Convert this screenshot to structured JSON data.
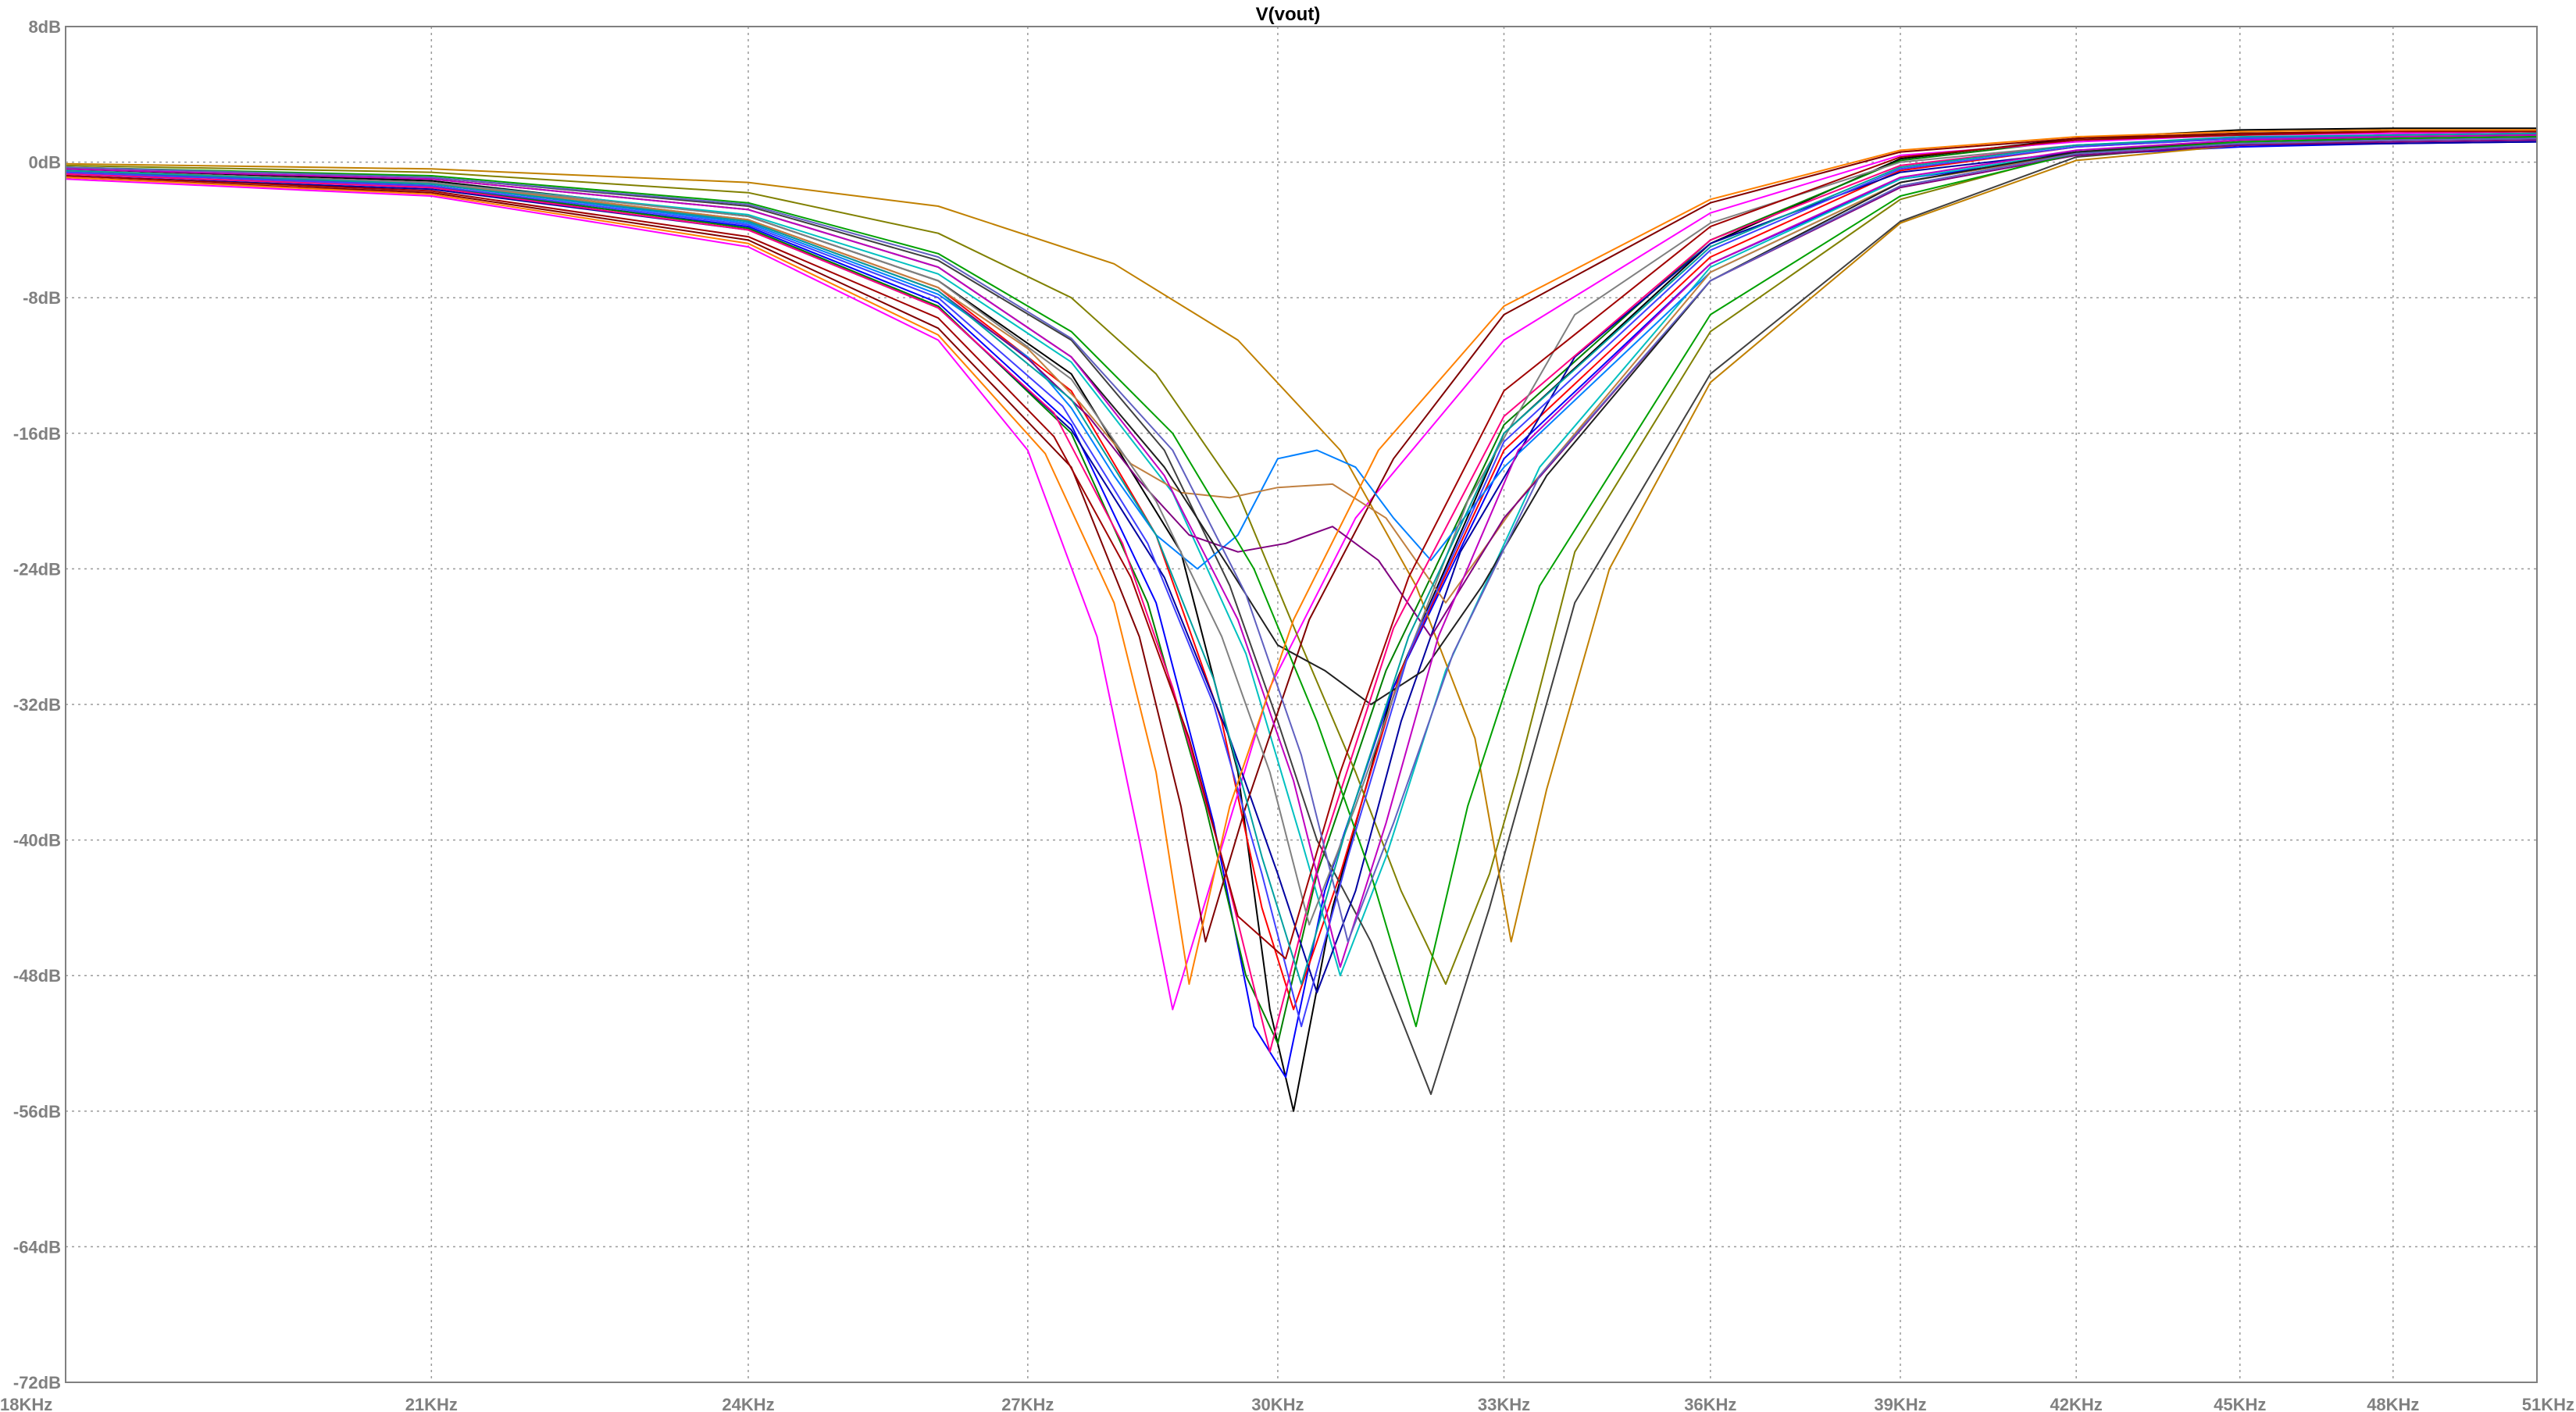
{
  "chart_data": {
    "type": "line",
    "title": "V(vout)",
    "xlabel": "",
    "ylabel": "",
    "x_scale": "log",
    "xlim": [
      18000,
      51000
    ],
    "ylim": [
      -72,
      8
    ],
    "x_ticks": [
      {
        "value": 18000,
        "label": "18KHz"
      },
      {
        "value": 21000,
        "label": "21KHz"
      },
      {
        "value": 24000,
        "label": "24KHz"
      },
      {
        "value": 27000,
        "label": "27KHz"
      },
      {
        "value": 30000,
        "label": "30KHz"
      },
      {
        "value": 33000,
        "label": "33KHz"
      },
      {
        "value": 36000,
        "label": "36KHz"
      },
      {
        "value": 39000,
        "label": "39KHz"
      },
      {
        "value": 42000,
        "label": "42KHz"
      },
      {
        "value": 45000,
        "label": "45KHz"
      },
      {
        "value": 48000,
        "label": "48KHz"
      },
      {
        "value": 51000,
        "label": "51KHz"
      }
    ],
    "y_ticks": [
      {
        "value": 8,
        "label": "8dB"
      },
      {
        "value": 0,
        "label": "0dB"
      },
      {
        "value": -8,
        "label": "-8dB"
      },
      {
        "value": -16,
        "label": "-16dB"
      },
      {
        "value": -24,
        "label": "-24dB"
      },
      {
        "value": -32,
        "label": "-32dB"
      },
      {
        "value": -40,
        "label": "-40dB"
      },
      {
        "value": -48,
        "label": "-48dB"
      },
      {
        "value": -56,
        "label": "-56dB"
      },
      {
        "value": -64,
        "label": "-64dB"
      },
      {
        "value": -72,
        "label": "-72dB"
      }
    ],
    "grid": true,
    "grid_style": "dotted",
    "legend": "none",
    "series": [
      {
        "color": "#000000",
        "x": [
          18000,
          21000,
          24000,
          26000,
          27500,
          28800,
          29500,
          29900,
          30200,
          30700,
          31500,
          33000,
          36000,
          39000,
          42000,
          45000,
          48000,
          51000
        ],
        "y": [
          -0.4,
          -1.1,
          -3.2,
          -7.0,
          -12.5,
          -23.0,
          -36.0,
          -50.0,
          -56.0,
          -44.0,
          -31.0,
          -16.0,
          -4.8,
          0.2,
          1.4,
          1.9,
          2.0,
          2.0
        ]
      },
      {
        "color": "#0000ff",
        "x": [
          18000,
          21000,
          24000,
          26000,
          27500,
          28500,
          29200,
          29700,
          30100,
          30600,
          31500,
          33000,
          36000,
          39000,
          42000,
          45000,
          48000,
          51000
        ],
        "y": [
          -0.7,
          -1.5,
          -3.8,
          -8.3,
          -15.5,
          -26.0,
          -39.0,
          -51.0,
          -54.0,
          -43.0,
          -31.0,
          -17.5,
          -6.0,
          -1.0,
          0.4,
          0.9,
          1.1,
          1.2
        ]
      },
      {
        "color": "#ff0000",
        "x": [
          18000,
          21000,
          24000,
          26000,
          27500,
          28500,
          29300,
          29800,
          30200,
          30800,
          31600,
          33000,
          36000,
          39000,
          42000,
          45000,
          48000,
          51000
        ],
        "y": [
          -0.5,
          -1.2,
          -3.4,
          -7.4,
          -13.5,
          -22.0,
          -33.0,
          -44.0,
          -50.0,
          -42.0,
          -30.0,
          -17.0,
          -5.6,
          -0.5,
          0.9,
          1.4,
          1.6,
          1.7
        ]
      },
      {
        "color": "#008000",
        "x": [
          18000,
          21000,
          24000,
          26000,
          27500,
          28400,
          29100,
          29600,
          30000,
          30500,
          31400,
          33000,
          36000,
          39000,
          42000,
          45000,
          48000,
          51000
        ],
        "y": [
          -0.6,
          -1.4,
          -3.9,
          -8.5,
          -16.0,
          -26.0,
          -38.0,
          -48.0,
          -52.0,
          -42.0,
          -30.0,
          -15.5,
          -4.6,
          0.1,
          1.3,
          1.7,
          1.8,
          1.9
        ]
      },
      {
        "color": "#ff00ff",
        "x": [
          18000,
          21000,
          24000,
          26000,
          27000,
          27800,
          28300,
          28700,
          29200,
          29900,
          31000,
          33000,
          36000,
          39000,
          42000,
          45000,
          48000,
          51000
        ],
        "y": [
          -1.0,
          -2.0,
          -5.0,
          -10.5,
          -17.0,
          -28.0,
          -40.0,
          -50.0,
          -42.0,
          -31.0,
          -21.0,
          -10.5,
          -3.0,
          0.4,
          1.2,
          1.6,
          1.7,
          1.8
        ]
      },
      {
        "color": "#808000",
        "x": [
          18000,
          21000,
          24000,
          26000,
          27500,
          28500,
          29500,
          30300,
          31000,
          31600,
          32200,
          32800,
          33200,
          34000,
          36000,
          39000,
          42000,
          45000,
          48000,
          51000
        ],
        "y": [
          -0.2,
          -0.6,
          -1.8,
          -4.2,
          -8.0,
          -12.5,
          -19.5,
          -28.5,
          -36.0,
          -43.0,
          -48.5,
          -42.0,
          -36.0,
          -23.0,
          -10.0,
          -2.2,
          0.6,
          1.3,
          1.5,
          1.6
        ]
      },
      {
        "color": "#00c0c0",
        "x": [
          18000,
          21000,
          24000,
          26000,
          27500,
          28700,
          29600,
          30300,
          30800,
          31400,
          32200,
          33500,
          36000,
          39000,
          42000,
          45000,
          48000,
          51000
        ],
        "y": [
          -0.5,
          -1.2,
          -3.1,
          -6.6,
          -11.8,
          -19.5,
          -29.0,
          -40.0,
          -48.0,
          -41.0,
          -30.0,
          -18.0,
          -6.2,
          -1.0,
          0.6,
          1.2,
          1.4,
          1.5
        ]
      },
      {
        "color": "#404040",
        "x": [
          18000,
          21000,
          24000,
          26000,
          27500,
          28600,
          29400,
          30000,
          30500,
          31200,
          32000,
          32800,
          34000,
          36000,
          39000,
          42000,
          45000,
          48000,
          51000
        ],
        "y": [
          -0.3,
          -0.9,
          -2.6,
          -5.8,
          -10.5,
          -17.0,
          -25.0,
          -33.0,
          -40.0,
          -46.0,
          -55.0,
          -44.0,
          -26.0,
          -12.5,
          -3.5,
          0.3,
          1.1,
          1.4,
          1.5
        ]
      },
      {
        "color": "#c08000",
        "x": [
          18000,
          21000,
          24000,
          26000,
          28000,
          29500,
          30800,
          31800,
          32600,
          33100,
          33600,
          34500,
          36000,
          39000,
          42000,
          45000,
          48000,
          51000
        ],
        "y": [
          -0.1,
          -0.4,
          -1.2,
          -2.6,
          -6.0,
          -10.5,
          -17.0,
          -25.0,
          -34.0,
          -46.0,
          -37.0,
          -24.0,
          -13.0,
          -3.6,
          0.1,
          1.0,
          1.3,
          1.4
        ]
      },
      {
        "color": "#0000a0",
        "x": [
          18000,
          21000,
          24000,
          26000,
          27500,
          28600,
          29400,
          30000,
          30500,
          31000,
          31600,
          32400,
          34000,
          36000,
          39000,
          42000,
          45000,
          48000,
          51000
        ],
        "y": [
          -0.8,
          -1.6,
          -4.0,
          -8.6,
          -15.8,
          -24.5,
          -34.0,
          -42.0,
          -49.0,
          -43.0,
          -33.0,
          -23.0,
          -11.5,
          -4.8,
          -0.6,
          0.6,
          1.0,
          1.1,
          1.2
        ]
      },
      {
        "color": "#800000",
        "x": [
          18000,
          21000,
          24000,
          26000,
          27500,
          28300,
          28800,
          29100,
          29600,
          30400,
          31500,
          33000,
          36000,
          39000,
          42000,
          45000,
          48000,
          51000
        ],
        "y": [
          -0.9,
          -1.8,
          -4.6,
          -9.8,
          -18.0,
          -28.0,
          -38.0,
          -46.0,
          -38.0,
          -27.0,
          -17.5,
          -9.0,
          -2.4,
          0.6,
          1.4,
          1.7,
          1.8,
          1.8
        ]
      },
      {
        "color": "#0080ff",
        "x": [
          18000,
          21000,
          24000,
          26000,
          27000,
          27500,
          28000,
          28500,
          29000,
          29500,
          30000,
          30500,
          31000,
          31500,
          32000,
          33000,
          36000,
          39000,
          42000,
          45000,
          48000,
          51000
        ],
        "y": [
          -0.6,
          -1.3,
          -3.6,
          -7.8,
          -11.5,
          -14.5,
          -18.5,
          -22.0,
          -24.0,
          -22.0,
          -17.5,
          -17.0,
          -18.0,
          -21.0,
          -23.5,
          -18.0,
          -6.5,
          -1.2,
          0.5,
          1.1,
          1.3,
          1.4
        ]
      },
      {
        "color": "#c08040",
        "x": [
          18000,
          21000,
          24000,
          26000,
          27000,
          27600,
          28200,
          28800,
          29400,
          30000,
          30700,
          31400,
          32200,
          33200,
          36000,
          39000,
          42000,
          45000,
          48000,
          51000
        ],
        "y": [
          -0.5,
          -1.2,
          -3.4,
          -7.4,
          -11.0,
          -14.2,
          -17.8,
          -19.5,
          -19.8,
          -19.2,
          -19.0,
          -21.0,
          -26.0,
          -20.0,
          -6.5,
          -1.2,
          0.5,
          1.1,
          1.3,
          1.4
        ]
      },
      {
        "color": "#800080",
        "x": [
          18000,
          21000,
          24000,
          26000,
          27000,
          27700,
          28300,
          28900,
          29500,
          30100,
          30700,
          31300,
          32000,
          33000,
          36000,
          39000,
          42000,
          45000,
          48000,
          51000
        ],
        "y": [
          -0.6,
          -1.3,
          -3.5,
          -7.6,
          -11.6,
          -15.0,
          -18.8,
          -22.0,
          -23.0,
          -22.5,
          -21.5,
          -23.5,
          -28.0,
          -21.0,
          -7.0,
          -1.5,
          0.4,
          1.0,
          1.2,
          1.3
        ]
      },
      {
        "color": "#202020",
        "x": [
          18000,
          21000,
          24000,
          26000,
          27500,
          28600,
          29400,
          30000,
          30600,
          31200,
          31900,
          32700,
          33600,
          36000,
          39000,
          42000,
          45000,
          48000,
          51000
        ],
        "y": [
          -0.4,
          -1.0,
          -2.8,
          -6.2,
          -11.5,
          -18.0,
          -24.0,
          -28.5,
          -30.0,
          -32.0,
          -30.0,
          -25.0,
          -18.5,
          -7.0,
          -1.2,
          0.6,
          1.2,
          1.4,
          1.5
        ]
      },
      {
        "color": "#ff0080",
        "x": [
          18000,
          21000,
          24000,
          26000,
          27300,
          28100,
          28700,
          29300,
          29900,
          30600,
          31500,
          33000,
          36000,
          39000,
          42000,
          45000,
          48000,
          51000
        ],
        "y": [
          -0.7,
          -1.5,
          -4.0,
          -8.6,
          -14.8,
          -22.5,
          -31.0,
          -41.0,
          -52.5,
          -40.0,
          -27.5,
          -15.0,
          -4.6,
          -0.2,
          1.0,
          1.4,
          1.6,
          1.7
        ]
      },
      {
        "color": "#00a000",
        "x": [
          18000,
          21000,
          24000,
          26000,
          27500,
          28700,
          29700,
          30500,
          31200,
          31800,
          32500,
          33500,
          36000,
          39000,
          42000,
          45000,
          48000,
          51000
        ],
        "y": [
          -0.3,
          -0.8,
          -2.4,
          -5.4,
          -10.0,
          -16.0,
          -24.0,
          -33.0,
          -42.0,
          -51.0,
          -38.0,
          -25.0,
          -9.0,
          -2.0,
          0.5,
          1.2,
          1.4,
          1.5
        ]
      },
      {
        "color": "#808080",
        "x": [
          18000,
          21000,
          24000,
          26000,
          27500,
          28500,
          29300,
          29900,
          30400,
          31000,
          31700,
          32500,
          34000,
          36000,
          39000,
          42000,
          45000,
          48000,
          51000
        ],
        "y": [
          -0.5,
          -1.2,
          -3.2,
          -7.0,
          -12.8,
          -20.0,
          -28.0,
          -36.0,
          -45.0,
          -38.0,
          -29.0,
          -20.0,
          -9.0,
          -3.6,
          0.0,
          1.0,
          1.4,
          1.5,
          1.6
        ]
      },
      {
        "color": "#4040ff",
        "x": [
          18000,
          21000,
          24000,
          26000,
          27400,
          28400,
          29200,
          29800,
          30300,
          30900,
          31700,
          33000,
          36000,
          39000,
          42000,
          45000,
          48000,
          51000
        ],
        "y": [
          -0.6,
          -1.4,
          -3.7,
          -8.0,
          -14.4,
          -22.5,
          -32.0,
          -42.0,
          -51.0,
          -41.0,
          -29.0,
          -16.5,
          -5.2,
          -0.4,
          0.9,
          1.4,
          1.6,
          1.7
        ]
      },
      {
        "color": "#a00000",
        "x": [
          18000,
          21000,
          24000,
          26000,
          27300,
          28200,
          28900,
          29500,
          30100,
          30800,
          31700,
          33000,
          36000,
          39000,
          42000,
          45000,
          48000,
          51000
        ],
        "y": [
          -0.8,
          -1.7,
          -4.4,
          -9.2,
          -16.2,
          -24.5,
          -34.0,
          -44.5,
          -47.0,
          -36.0,
          -24.5,
          -13.5,
          -3.8,
          0.3,
          1.3,
          1.6,
          1.8,
          1.8
        ]
      },
      {
        "color": "#c000c0",
        "x": [
          18000,
          21000,
          24000,
          26000,
          27500,
          28600,
          29500,
          30200,
          30800,
          31400,
          32100,
          33200,
          36000,
          39000,
          42000,
          45000,
          48000,
          51000
        ],
        "y": [
          -0.4,
          -1.0,
          -2.8,
          -6.2,
          -11.5,
          -18.5,
          -27.0,
          -36.5,
          -47.5,
          -39.0,
          -28.0,
          -17.0,
          -6.0,
          -0.9,
          0.7,
          1.3,
          1.5,
          1.6
        ]
      },
      {
        "color": "#00a0a0",
        "x": [
          18000,
          21000,
          24000,
          26000,
          27500,
          28500,
          29200,
          29800,
          30300,
          30900,
          31700,
          33000,
          36000,
          39000,
          42000,
          45000,
          48000,
          51000
        ],
        "y": [
          -0.5,
          -1.3,
          -3.5,
          -7.6,
          -14.0,
          -22.0,
          -30.5,
          -41.0,
          -48.5,
          -39.0,
          -28.0,
          -16.0,
          -5.0,
          -0.3,
          1.0,
          1.5,
          1.6,
          1.7
        ]
      },
      {
        "color": "#ff8000",
        "x": [
          18000,
          21000,
          24000,
          26000,
          27200,
          28000,
          28500,
          28900,
          29400,
          30200,
          31300,
          33000,
          36000,
          39000,
          42000,
          45000,
          48000,
          51000
        ],
        "y": [
          -0.9,
          -1.9,
          -4.8,
          -10.2,
          -17.2,
          -26.0,
          -36.0,
          -48.5,
          -38.0,
          -27.0,
          -17.0,
          -8.5,
          -2.2,
          0.7,
          1.5,
          1.8,
          1.9,
          1.9
        ]
      },
      {
        "color": "#6060c0",
        "x": [
          18000,
          21000,
          24000,
          26000,
          27500,
          28700,
          29600,
          30300,
          30900,
          31500,
          32300,
          33500,
          36000,
          39000,
          42000,
          45000,
          48000,
          51000
        ],
        "y": [
          -0.3,
          -0.9,
          -2.5,
          -5.6,
          -10.4,
          -17.0,
          -25.5,
          -35.0,
          -46.0,
          -39.0,
          -29.0,
          -18.5,
          -7.0,
          -1.4,
          0.5,
          1.1,
          1.3,
          1.4
        ]
      }
    ]
  }
}
